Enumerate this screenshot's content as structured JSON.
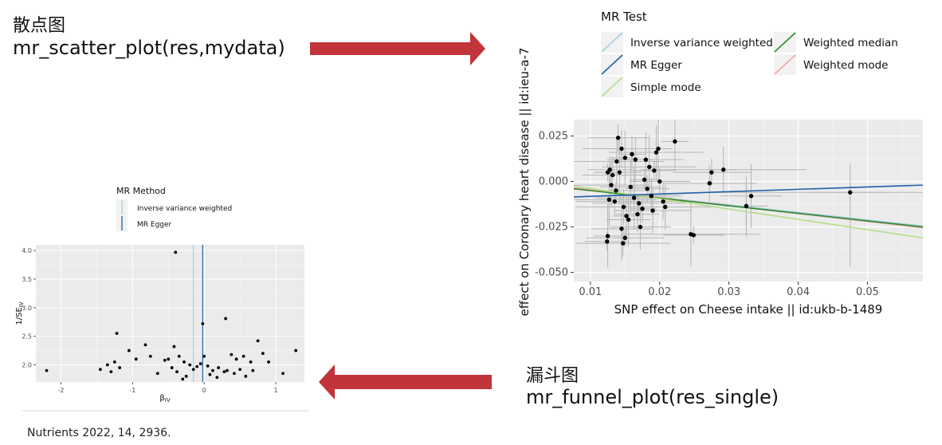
{
  "captions": {
    "scatter_title_cn": "散点图",
    "scatter_code": "mr_scatter_plot(res,mydata)",
    "funnel_title_cn": "漏斗图",
    "funnel_code": "mr_funnel_plot(res_single)"
  },
  "source": "Nutrients 2022, 14, 2936.",
  "colors": {
    "arrow": "#c0343a",
    "ivw": "#a6cee3",
    "egger": "#1f5fa8",
    "simple_mode": "#b2df8a",
    "weighted_median": "#2f8a2f",
    "weighted_mode": "#f4a6a6",
    "panel_bg": "#ebebeb",
    "points": "#000000",
    "error_bars": "#b5b5b5"
  },
  "chart_data": [
    {
      "type": "scatter",
      "xlabel": "SNP effect on Cheese intake || id:ukb-b-1489",
      "ylabel": "effect on Coronary heart disease || id:ieu-a-7",
      "xlim": [
        0.0076,
        0.058
      ],
      "ylim": [
        -0.055,
        0.034
      ],
      "x_ticks": [
        0.01,
        0.02,
        0.03,
        0.04,
        0.05
      ],
      "x_tick_labels": [
        "0.01",
        "0.02",
        "0.03",
        "0.04",
        "0.05"
      ],
      "y_ticks": [
        0.025,
        0.0,
        -0.025,
        -0.05
      ],
      "y_tick_labels": [
        "0.025",
        "0.000",
        "-0.025",
        "-0.050"
      ],
      "grid": true,
      "legend": {
        "title": "MR Test",
        "position": "top",
        "entries": [
          {
            "label": "Inverse variance weighted",
            "color": "#a6cee3"
          },
          {
            "label": "MR Egger",
            "color": "#1f5fa8"
          },
          {
            "label": "Simple mode",
            "color": "#b2df8a"
          },
          {
            "label": "Weighted median",
            "color": "#2f8a2f"
          },
          {
            "label": "Weighted mode",
            "color": "#f4a6a6"
          }
        ]
      },
      "lines": [
        {
          "name": "Inverse variance weighted",
          "x0": 0.0076,
          "y0": -0.0035,
          "x1": 0.058,
          "y1": -0.0245
        },
        {
          "name": "Weighted mode",
          "x0": 0.0076,
          "y0": -0.0035,
          "x1": 0.058,
          "y1": -0.0255
        },
        {
          "name": "Weighted median",
          "x0": 0.0076,
          "y0": -0.004,
          "x1": 0.058,
          "y1": -0.025
        },
        {
          "name": "Simple mode",
          "x0": 0.0076,
          "y0": -0.0025,
          "x1": 0.058,
          "y1": -0.031
        },
        {
          "name": "MR Egger",
          "x0": 0.0076,
          "y0": -0.0085,
          "x1": 0.058,
          "y1": -0.002
        }
      ],
      "points": [
        {
          "x": 0.0125,
          "y": 0.005
        },
        {
          "x": 0.0128,
          "y": 0.0065
        },
        {
          "x": 0.0132,
          "y": 0.0035
        },
        {
          "x": 0.013,
          "y": -0.002
        },
        {
          "x": 0.0127,
          "y": -0.01
        },
        {
          "x": 0.0125,
          "y": -0.03
        },
        {
          "x": 0.0124,
          "y": -0.033
        },
        {
          "x": 0.014,
          "y": 0.024
        },
        {
          "x": 0.0145,
          "y": 0.018
        },
        {
          "x": 0.0138,
          "y": 0.011
        },
        {
          "x": 0.015,
          "y": 0.013
        },
        {
          "x": 0.0142,
          "y": 0.005
        },
        {
          "x": 0.0137,
          "y": -0.005
        },
        {
          "x": 0.0135,
          "y": -0.011
        },
        {
          "x": 0.0148,
          "y": -0.014
        },
        {
          "x": 0.0152,
          "y": -0.019
        },
        {
          "x": 0.0155,
          "y": -0.021
        },
        {
          "x": 0.0145,
          "y": -0.026
        },
        {
          "x": 0.015,
          "y": -0.031
        },
        {
          "x": 0.0147,
          "y": -0.034
        },
        {
          "x": 0.016,
          "y": 0.015
        },
        {
          "x": 0.0165,
          "y": 0.012
        },
        {
          "x": 0.0158,
          "y": -0.003
        },
        {
          "x": 0.0163,
          "y": -0.009
        },
        {
          "x": 0.017,
          "y": -0.012
        },
        {
          "x": 0.0175,
          "y": -0.015
        },
        {
          "x": 0.0168,
          "y": -0.018
        },
        {
          "x": 0.0172,
          "y": -0.025
        },
        {
          "x": 0.018,
          "y": 0.012
        },
        {
          "x": 0.0185,
          "y": 0.008
        },
        {
          "x": 0.0178,
          "y": 0.001
        },
        {
          "x": 0.0182,
          "y": -0.004
        },
        {
          "x": 0.0188,
          "y": -0.008
        },
        {
          "x": 0.019,
          "y": -0.016
        },
        {
          "x": 0.0195,
          "y": 0.016
        },
        {
          "x": 0.0198,
          "y": 0.018
        },
        {
          "x": 0.0192,
          "y": 0.006
        },
        {
          "x": 0.02,
          "y": 0.0
        },
        {
          "x": 0.0205,
          "y": -0.011
        },
        {
          "x": 0.0208,
          "y": -0.014
        },
        {
          "x": 0.0222,
          "y": 0.022
        },
        {
          "x": 0.0245,
          "y": -0.029
        },
        {
          "x": 0.0249,
          "y": -0.0295
        },
        {
          "x": 0.0275,
          "y": 0.005
        },
        {
          "x": 0.0272,
          "y": -0.001
        },
        {
          "x": 0.0292,
          "y": 0.0065
        },
        {
          "x": 0.0325,
          "y": -0.0135
        },
        {
          "x": 0.0332,
          "y": -0.008
        },
        {
          "x": 0.0475,
          "y": -0.006
        }
      ]
    },
    {
      "type": "scatter",
      "xlabel": "βIV",
      "ylabel": "1/SEIV",
      "xlim": [
        -2.35,
        1.4
      ],
      "ylim": [
        1.7,
        4.1
      ],
      "x_ticks": [
        -2,
        -1,
        0,
        1
      ],
      "x_tick_labels": [
        "-2",
        "-1",
        "0",
        "1"
      ],
      "y_ticks": [
        2.0,
        2.5,
        3.0,
        3.5,
        4.0
      ],
      "y_tick_labels": [
        "2.0",
        "2.5",
        "3.0",
        "3.5",
        "4.0"
      ],
      "grid": true,
      "legend": {
        "title": "MR Method",
        "position": "top",
        "entries": [
          {
            "label": "Inverse variance weighted",
            "color": "#a6cee3"
          },
          {
            "label": "MR Egger",
            "color": "#1f5fa8"
          }
        ]
      },
      "vlines": [
        {
          "name": "Inverse variance weighted",
          "x": -0.15
        },
        {
          "name": "MR Egger",
          "x": -0.02
        }
      ],
      "points": [
        {
          "x": -0.4,
          "y": 3.97
        },
        {
          "x": -0.02,
          "y": 2.72
        },
        {
          "x": 0.3,
          "y": 2.81
        },
        {
          "x": -1.22,
          "y": 2.55
        },
        {
          "x": -1.05,
          "y": 2.25
        },
        {
          "x": -0.82,
          "y": 2.35
        },
        {
          "x": -0.95,
          "y": 2.1
        },
        {
          "x": -0.75,
          "y": 2.15
        },
        {
          "x": -0.5,
          "y": 2.1
        },
        {
          "x": -0.42,
          "y": 2.32
        },
        {
          "x": -0.35,
          "y": 2.15
        },
        {
          "x": -0.28,
          "y": 2.05
        },
        {
          "x": -0.15,
          "y": 1.92
        },
        {
          "x": 0.0,
          "y": 2.15
        },
        {
          "x": 0.05,
          "y": 1.98
        },
        {
          "x": 0.12,
          "y": 1.9
        },
        {
          "x": 0.2,
          "y": 1.95
        },
        {
          "x": 0.28,
          "y": 1.88
        },
        {
          "x": 0.38,
          "y": 2.18
        },
        {
          "x": 0.45,
          "y": 2.1
        },
        {
          "x": 0.55,
          "y": 2.15
        },
        {
          "x": 0.65,
          "y": 2.05
        },
        {
          "x": 0.75,
          "y": 2.42
        },
        {
          "x": 0.82,
          "y": 2.2
        },
        {
          "x": 0.9,
          "y": 2.05
        },
        {
          "x": 1.1,
          "y": 1.85
        },
        {
          "x": 1.28,
          "y": 2.25
        },
        {
          "x": -2.2,
          "y": 1.9
        },
        {
          "x": -1.45,
          "y": 1.92
        },
        {
          "x": -1.35,
          "y": 2.0
        },
        {
          "x": -1.25,
          "y": 2.05
        },
        {
          "x": -1.18,
          "y": 1.95
        },
        {
          "x": -0.65,
          "y": 1.85
        },
        {
          "x": -0.55,
          "y": 2.08
        },
        {
          "x": -0.45,
          "y": 1.95
        },
        {
          "x": -0.38,
          "y": 1.88
        },
        {
          "x": -0.3,
          "y": 1.75
        },
        {
          "x": -0.25,
          "y": 1.8
        },
        {
          "x": -0.1,
          "y": 1.97
        },
        {
          "x": 0.08,
          "y": 1.83
        },
        {
          "x": 0.18,
          "y": 1.78
        },
        {
          "x": 0.32,
          "y": 1.9
        },
        {
          "x": 0.42,
          "y": 1.85
        },
        {
          "x": 0.5,
          "y": 1.92
        },
        {
          "x": 0.58,
          "y": 1.8
        },
        {
          "x": 0.68,
          "y": 1.9
        },
        {
          "x": -0.05,
          "y": 2.02
        },
        {
          "x": -0.2,
          "y": 2.0
        },
        {
          "x": -1.3,
          "y": 1.88
        }
      ]
    }
  ]
}
